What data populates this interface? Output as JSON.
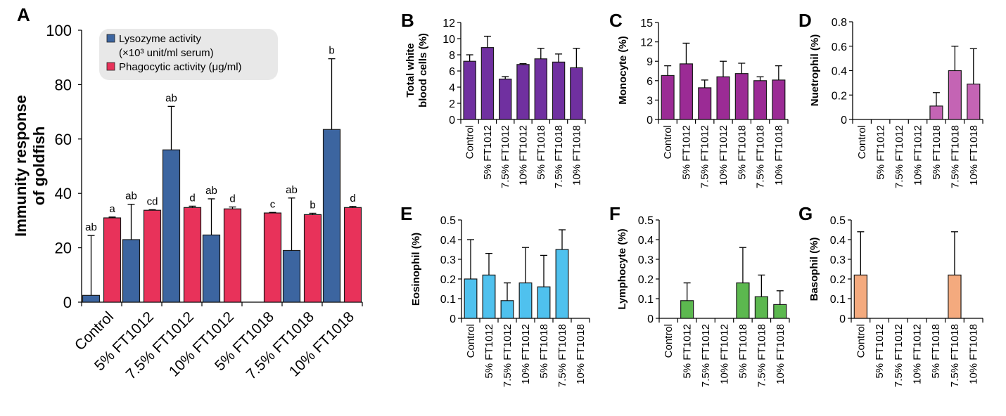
{
  "figure": {
    "panels": [
      "A",
      "B",
      "C",
      "D",
      "E",
      "F",
      "G"
    ]
  },
  "chart_data": [
    {
      "panel": "A",
      "type": "bar",
      "title": "",
      "ylabel": "Immunity response of goldfish",
      "ylabel_lines": [
        "Immunity response",
        "of goldfish"
      ],
      "xlabel": "",
      "ylim": [
        0,
        100
      ],
      "yticks": [
        0,
        20,
        40,
        60,
        80,
        100
      ],
      "grid": false,
      "legend": "top-left",
      "categories": [
        "Control",
        "5% FT1012",
        "7.5% FT1012",
        "10% FT1012",
        "5% FT1018",
        "7.5% FT1018",
        "10% FT1018"
      ],
      "series": [
        {
          "name": "Lysozyme activity (×10³ unit/ml serum)",
          "legend_lines": [
            "Lysozyme activity",
            "(×10³ unit/ml serum)"
          ],
          "color": "#3C65A0",
          "values": [
            2.5,
            23,
            56,
            24.7,
            0,
            19,
            63.5
          ],
          "error_upper": [
            24.5,
            36,
            72,
            38,
            null,
            38.3,
            89.5
          ],
          "significance": [
            "ab",
            "ab",
            "ab",
            "ab",
            "",
            "ab",
            "b"
          ]
        },
        {
          "name": "Phagocytic activity (μg/ml)",
          "legend_lines": [
            "Phagocytic activity (μg/ml)"
          ],
          "color": "#E8325A",
          "values": [
            31,
            33.8,
            34.8,
            34.3,
            32.8,
            32.2,
            34.8
          ],
          "error_upper": [
            31.3,
            34.0,
            35.3,
            35.0,
            33.0,
            32.7,
            35.2
          ],
          "significance": [
            "a",
            "cd",
            "d",
            "d",
            "c",
            "b",
            "d"
          ]
        }
      ]
    },
    {
      "panel": "B",
      "type": "bar",
      "ylabel": "Total white blood cells (%)",
      "ylabel_lines": [
        "Total white",
        "blood cells (%)"
      ],
      "ylim": [
        0,
        12
      ],
      "yticks": [
        0,
        2,
        4,
        6,
        8,
        10,
        12
      ],
      "grid": false,
      "categories": [
        "Control",
        "5% FT1012",
        "7.5% FT1012",
        "10% FT1012",
        "5% FT1018",
        "7.5% FT1018",
        "10% FT1018"
      ],
      "series": [
        {
          "name": "Total white blood cells",
          "color": "#7030A0",
          "values": [
            7.2,
            8.9,
            5.0,
            6.8,
            7.5,
            7.1,
            6.4
          ],
          "error_upper": [
            8.0,
            10.3,
            5.3,
            6.9,
            8.8,
            8.1,
            8.8
          ]
        }
      ]
    },
    {
      "panel": "C",
      "type": "bar",
      "ylabel": "Monocyte (%)",
      "ylabel_lines": [
        "Monocyte (%)"
      ],
      "ylim": [
        0,
        15
      ],
      "yticks": [
        0,
        3,
        6,
        9,
        12,
        15
      ],
      "grid": false,
      "categories": [
        "Control",
        "5% FT1012",
        "7.5% FT1012",
        "10% FT1012",
        "5% FT1018",
        "7.5% FT1018",
        "10% FT1018"
      ],
      "series": [
        {
          "name": "Monocyte",
          "color": "#9B2B95",
          "values": [
            6.8,
            8.6,
            4.9,
            6.6,
            7.1,
            6.0,
            6.1
          ],
          "error_upper": [
            8.3,
            11.8,
            6.1,
            9.0,
            8.7,
            6.6,
            8.3
          ]
        }
      ]
    },
    {
      "panel": "D",
      "type": "bar",
      "ylabel": "Nuetrophil (%)",
      "ylabel_lines": [
        "Nuetrophil (%)"
      ],
      "ylim": [
        0,
        0.8
      ],
      "yticks": [
        0,
        0.2,
        0.4,
        0.6,
        0.8
      ],
      "ytick_labels": [
        "0",
        "0.2",
        "0.4",
        "0.6",
        "0.8"
      ],
      "grid": false,
      "categories": [
        "Control",
        "5% FT1012",
        "7.5% FT1012",
        "10% FT1012",
        "5% FT1018",
        "7.5% FT1018",
        "10% FT1018"
      ],
      "series": [
        {
          "name": "Nuetrophil",
          "color": "#C464B4",
          "values": [
            0,
            0,
            0,
            0,
            0.11,
            0.4,
            0.29
          ],
          "error_upper": [
            null,
            null,
            null,
            null,
            0.22,
            0.6,
            0.58
          ]
        }
      ]
    },
    {
      "panel": "E",
      "type": "bar",
      "ylabel": "Eosinophil (%)",
      "ylabel_lines": [
        "Eosinophil (%)"
      ],
      "ylim": [
        0,
        0.5
      ],
      "yticks": [
        0,
        0.1,
        0.2,
        0.3,
        0.4,
        0.5
      ],
      "ytick_labels": [
        "0",
        "0.1",
        "0.2",
        "0.3",
        "0.4",
        "0.5"
      ],
      "grid": false,
      "categories": [
        "Control",
        "5% FT1012",
        "7.5% FT1012",
        "10% FT1012",
        "5% FT1018",
        "7.5% FT1018",
        "10% FT1018"
      ],
      "series": [
        {
          "name": "Eosinophil",
          "color": "#4FC1EE",
          "values": [
            0.2,
            0.22,
            0.09,
            0.18,
            0.16,
            0.35,
            0
          ],
          "error_upper": [
            0.4,
            0.33,
            0.18,
            0.36,
            0.32,
            0.45,
            null
          ]
        }
      ]
    },
    {
      "panel": "F",
      "type": "bar",
      "ylabel": "Lymphocyte (%)",
      "ylabel_lines": [
        "Lymphocyte (%)"
      ],
      "ylim": [
        0,
        0.5
      ],
      "yticks": [
        0,
        0.1,
        0.2,
        0.3,
        0.4,
        0.5
      ],
      "ytick_labels": [
        "0",
        "0.1",
        "0.2",
        "0.3",
        "0.4",
        "0.5"
      ],
      "grid": false,
      "categories": [
        "Control",
        "5% FT1012",
        "7.5% FT1012",
        "10% FT1012",
        "5% FT1018",
        "7.5% FT1018",
        "10% FT1018"
      ],
      "series": [
        {
          "name": "Lymphocyte",
          "color": "#5CB84F",
          "values": [
            0,
            0.09,
            0,
            0,
            0.18,
            0.11,
            0.07
          ],
          "error_upper": [
            null,
            0.18,
            null,
            null,
            0.36,
            0.22,
            0.14
          ]
        }
      ]
    },
    {
      "panel": "G",
      "type": "bar",
      "ylabel": "Basophil (%)",
      "ylabel_lines": [
        "Basophil (%)"
      ],
      "ylim": [
        0,
        0.5
      ],
      "yticks": [
        0,
        0.1,
        0.2,
        0.3,
        0.4,
        0.5
      ],
      "ytick_labels": [
        "0",
        "0.1",
        "0.2",
        "0.3",
        "0.4",
        "0.5"
      ],
      "grid": false,
      "categories": [
        "Control",
        "5% FT1012",
        "7.5% FT1012",
        "10% FT1012",
        "5% FT1018",
        "7.5% FT1018",
        "10% FT1018"
      ],
      "series": [
        {
          "name": "Basophil",
          "color": "#F4AA7E",
          "values": [
            0.22,
            0,
            0,
            0,
            0,
            0.22,
            0
          ],
          "error_upper": [
            0.44,
            null,
            null,
            null,
            null,
            0.44,
            null
          ]
        }
      ]
    }
  ]
}
